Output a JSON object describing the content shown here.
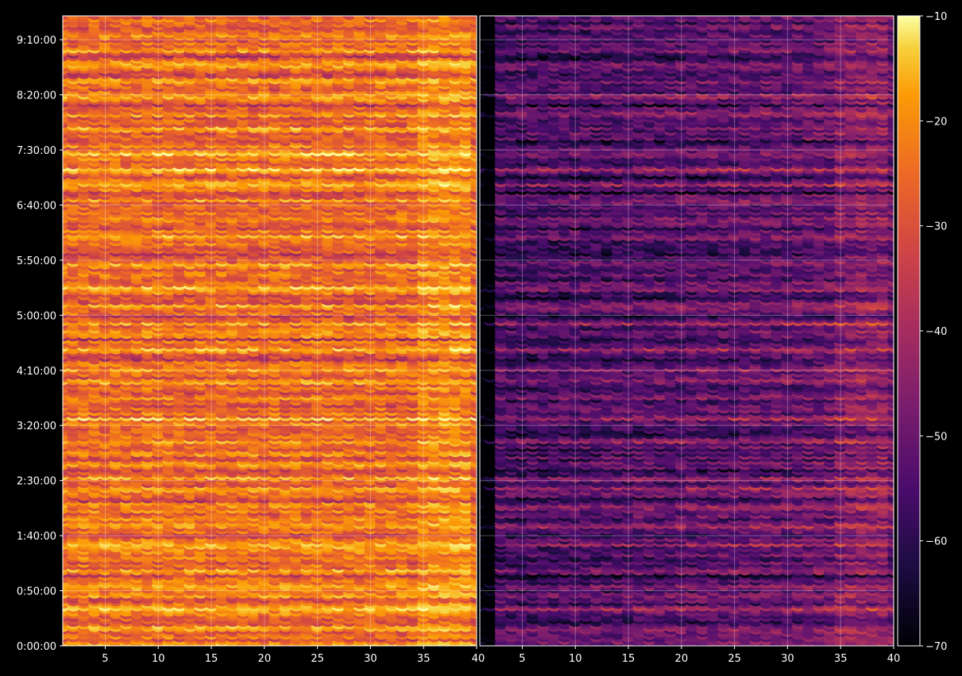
{
  "chart_data": {
    "type": "heatmap",
    "title": "",
    "xlabel": "",
    "ylabel": "",
    "panels": [
      {
        "name": "",
        "x_range": [
          1,
          40
        ],
        "x_ticks": [
          5,
          10,
          15,
          20,
          25,
          30,
          35
        ],
        "x_tick_labels": [
          "5",
          "10",
          "15",
          "20",
          "25",
          "30",
          "35"
        ]
      },
      {
        "name": "",
        "x_range": [
          1,
          40
        ],
        "x_ticks": [
          5,
          10,
          15,
          20,
          25,
          30,
          35,
          40
        ],
        "x_tick_labels": [
          "5",
          "10",
          "15",
          "20",
          "25",
          "30",
          "35",
          "40"
        ]
      }
    ],
    "left_edge_label": "40",
    "y_range_seconds": [
      0,
      33000
    ],
    "y_ticks_seconds": [
      0,
      3000,
      6000,
      9000,
      12000,
      15000,
      18000,
      21000,
      24000,
      27000,
      30000,
      33000
    ],
    "y_tick_labels": [
      "0:00:00",
      "0:50:00",
      "1:40:00",
      "2:30:00",
      "3:20:00",
      "4:10:00",
      "5:00:00",
      "5:50:00",
      "6:40:00",
      "7:30:00",
      "8:20:00",
      "9:10:00"
    ],
    "colorbar": {
      "colormap": "inferno",
      "range": [
        -70,
        -10
      ],
      "ticks": [
        -70,
        -60,
        -50,
        -40,
        -30,
        -20,
        -10
      ],
      "tick_labels": [
        "−70",
        "−60",
        "−50",
        "−40",
        "−30",
        "−20",
        "−10"
      ]
    },
    "panel_mean_level": [
      -30,
      -55
    ],
    "strong_rows_seconds": [
      210,
      1050,
      2130,
      2880,
      3300,
      4140,
      5580,
      6600,
      7680,
      8640,
      9210,
      10020,
      11220,
      12480,
      13620,
      14460,
      15120,
      16260,
      17640,
      18540,
      19560,
      20820,
      22380,
      23280,
      24360,
      25200,
      26040,
      26880,
      28260,
      29040,
      30030,
      30840,
      31710,
      32580
    ],
    "weak_rows_seconds": [
      1500,
      3900,
      6060,
      8040,
      9600,
      11700,
      13260,
      15720,
      16800,
      18000,
      19140,
      21360,
      22860,
      24780,
      25680,
      27540,
      29520,
      31200,
      32160
    ],
    "grid": true,
    "legend": "none"
  }
}
